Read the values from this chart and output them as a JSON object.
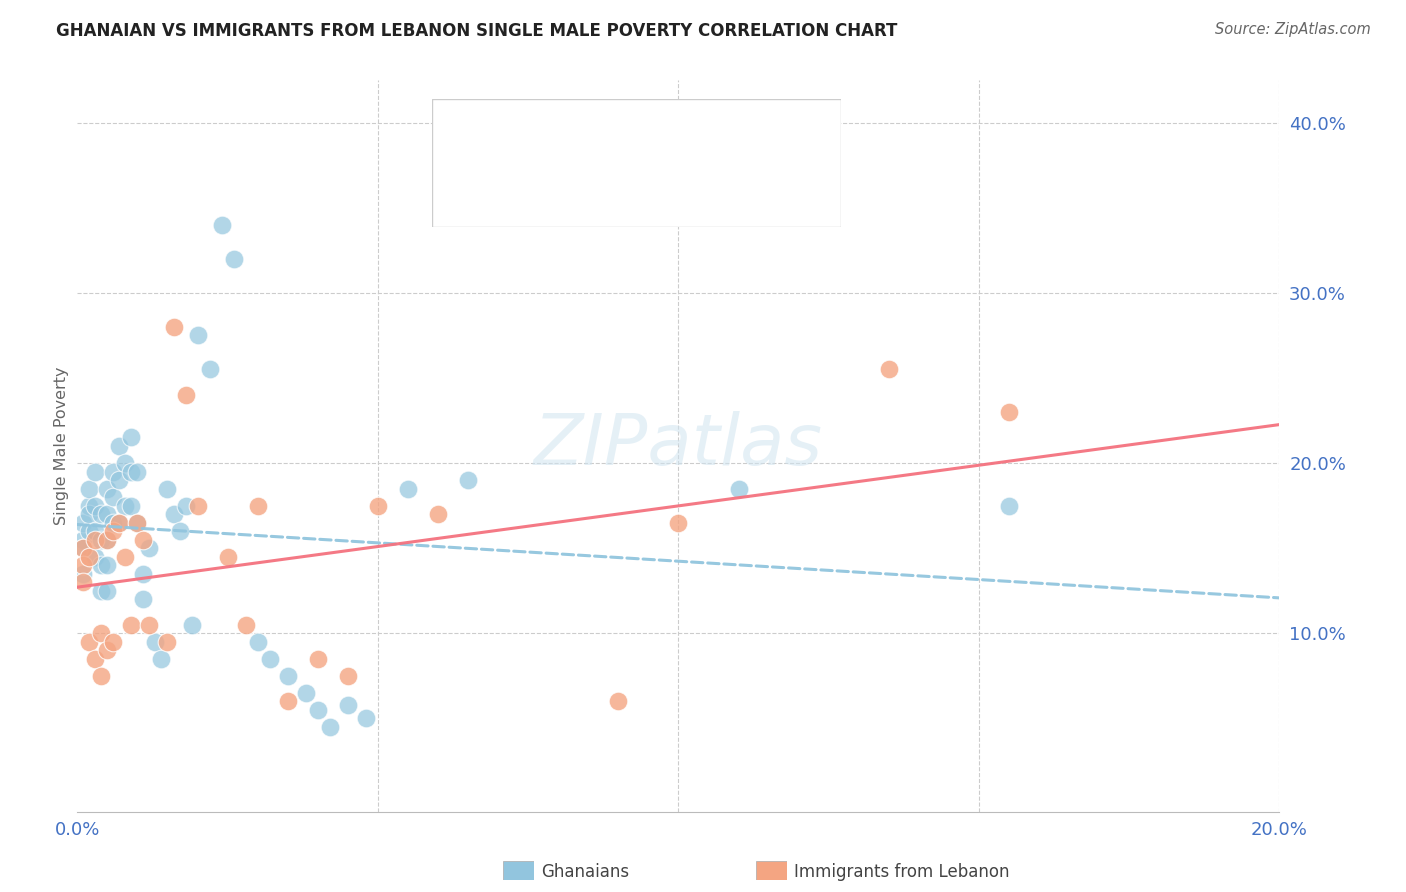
{
  "title": "GHANAIAN VS IMMIGRANTS FROM LEBANON SINGLE MALE POVERTY CORRELATION CHART",
  "source": "Source: ZipAtlas.com",
  "ylabel": "Single Male Poverty",
  "color_blue": "#92c5de",
  "color_pink": "#f4a582",
  "color_blue_line": "#92c5de",
  "color_pink_line": "#f4727f",
  "color_axis": "#4472c4",
  "watermark": "ZIPatlas",
  "xlim": [
    0.0,
    0.2
  ],
  "ylim": [
    -0.005,
    0.425
  ],
  "ghana_x": [
    0.001,
    0.001,
    0.001,
    0.001,
    0.002,
    0.002,
    0.002,
    0.002,
    0.003,
    0.003,
    0.003,
    0.003,
    0.004,
    0.004,
    0.004,
    0.004,
    0.005,
    0.005,
    0.005,
    0.005,
    0.005,
    0.006,
    0.006,
    0.006,
    0.007,
    0.007,
    0.007,
    0.008,
    0.008,
    0.009,
    0.009,
    0.009,
    0.01,
    0.01,
    0.011,
    0.011,
    0.012,
    0.013,
    0.014,
    0.015,
    0.016,
    0.017,
    0.018,
    0.019,
    0.02,
    0.022,
    0.024,
    0.026,
    0.03,
    0.032,
    0.035,
    0.038,
    0.04,
    0.042,
    0.045,
    0.048,
    0.055,
    0.065,
    0.11,
    0.155
  ],
  "ghana_y": [
    0.155,
    0.165,
    0.15,
    0.135,
    0.175,
    0.16,
    0.185,
    0.17,
    0.195,
    0.175,
    0.16,
    0.145,
    0.17,
    0.155,
    0.14,
    0.125,
    0.185,
    0.17,
    0.155,
    0.14,
    0.125,
    0.195,
    0.18,
    0.165,
    0.21,
    0.19,
    0.165,
    0.2,
    0.175,
    0.215,
    0.195,
    0.175,
    0.195,
    0.165,
    0.135,
    0.12,
    0.15,
    0.095,
    0.085,
    0.185,
    0.17,
    0.16,
    0.175,
    0.105,
    0.275,
    0.255,
    0.34,
    0.32,
    0.095,
    0.085,
    0.075,
    0.065,
    0.055,
    0.045,
    0.058,
    0.05,
    0.185,
    0.19,
    0.185,
    0.175
  ],
  "lebanon_x": [
    0.001,
    0.001,
    0.001,
    0.002,
    0.002,
    0.003,
    0.003,
    0.004,
    0.004,
    0.005,
    0.005,
    0.006,
    0.006,
    0.007,
    0.008,
    0.009,
    0.01,
    0.011,
    0.012,
    0.015,
    0.016,
    0.018,
    0.02,
    0.025,
    0.028,
    0.03,
    0.035,
    0.04,
    0.045,
    0.05,
    0.06,
    0.09,
    0.1,
    0.135,
    0.155
  ],
  "lebanon_y": [
    0.15,
    0.14,
    0.13,
    0.145,
    0.095,
    0.155,
    0.085,
    0.1,
    0.075,
    0.155,
    0.09,
    0.16,
    0.095,
    0.165,
    0.145,
    0.105,
    0.165,
    0.155,
    0.105,
    0.095,
    0.28,
    0.24,
    0.175,
    0.145,
    0.105,
    0.175,
    0.06,
    0.085,
    0.075,
    0.175,
    0.17,
    0.06,
    0.165,
    0.255,
    0.23
  ]
}
